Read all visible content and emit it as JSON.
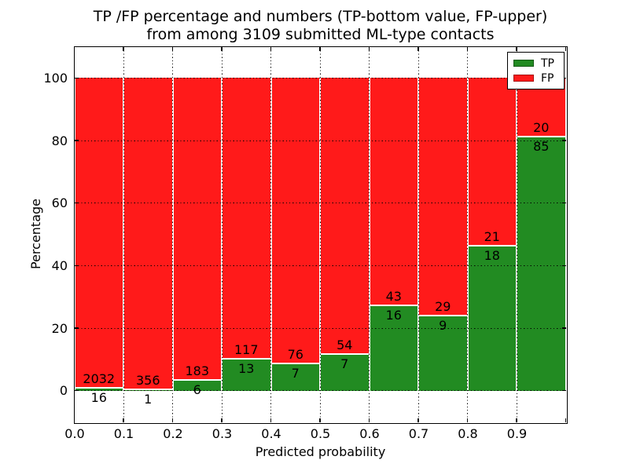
{
  "chart_data": {
    "type": "bar",
    "stacked": true,
    "normalized_to_percent": true,
    "title_line1": "TP /FP percentage and numbers (TP-bottom value, FP-upper)",
    "title_line2": "from among 3109 submitted ML-type contacts",
    "xlabel": "Predicted probability",
    "ylabel": "Percentage",
    "xlim": [
      0.0,
      1.0
    ],
    "ylim": [
      -10,
      110
    ],
    "bin_width": 0.1,
    "x_tick_values": [
      0.0,
      0.1,
      0.2,
      0.3,
      0.4,
      0.5,
      0.6,
      0.7,
      0.8,
      0.9
    ],
    "x_tick_labels": [
      "0.0",
      "0.1",
      "0.2",
      "0.3",
      "0.4",
      "0.5",
      "0.6",
      "0.7",
      "0.8",
      "0.9"
    ],
    "y_tick_values": [
      0,
      20,
      40,
      60,
      80,
      100
    ],
    "y_tick_labels": [
      "0",
      "20",
      "40",
      "60",
      "80",
      "100"
    ],
    "grid": true,
    "categories": [
      "0.0-0.1",
      "0.1-0.2",
      "0.2-0.3",
      "0.3-0.4",
      "0.4-0.5",
      "0.5-0.6",
      "0.6-0.7",
      "0.7-0.8",
      "0.8-0.9",
      "0.9-1.0"
    ],
    "series": [
      {
        "name": "TP",
        "color": "#228B22",
        "counts": [
          16,
          1,
          6,
          13,
          7,
          7,
          16,
          9,
          18,
          85
        ]
      },
      {
        "name": "FP",
        "color": "#FF1A1A",
        "counts": [
          2032,
          356,
          183,
          117,
          76,
          54,
          43,
          29,
          21,
          20
        ]
      }
    ],
    "legend": {
      "position": "upper right",
      "entries": [
        {
          "label": "TP",
          "color": "#228B22"
        },
        {
          "label": "FP",
          "color": "#FF1A1A"
        }
      ]
    }
  }
}
